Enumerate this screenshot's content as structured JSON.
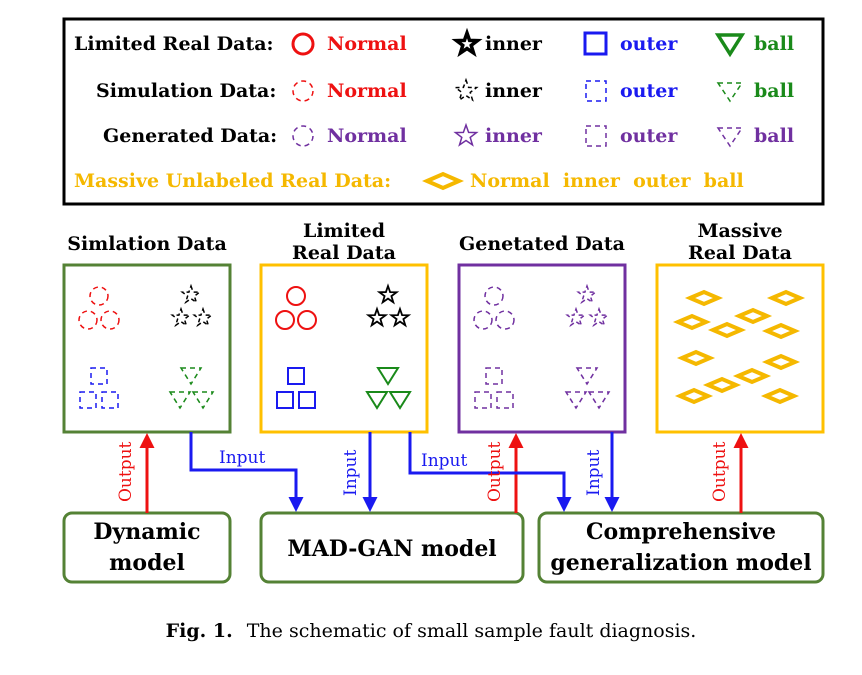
{
  "legend": {
    "rows": [
      {
        "label": "Limited Real Data:",
        "items": [
          "Normal",
          "inner",
          "outer",
          "ball"
        ]
      },
      {
        "label": "Simulation Data:",
        "items": [
          "Normal",
          "inner",
          "outer",
          "ball"
        ]
      },
      {
        "label": "Generated Data:",
        "items": [
          "Normal",
          "inner",
          "outer",
          "ball"
        ]
      }
    ],
    "massive": {
      "label": "Massive Unlabeled Real Data:",
      "items": "Normal  inner  outer  ball"
    }
  },
  "panels": {
    "simulation": {
      "title": [
        "Simlation Data"
      ]
    },
    "limited": {
      "title": [
        "Limited",
        "Real Data"
      ]
    },
    "generated": {
      "title": [
        "Genetated Data"
      ]
    },
    "massive": {
      "title": [
        "Massive",
        "Real Data"
      ]
    }
  },
  "models": {
    "dynamic": [
      "Dynamic",
      "model"
    ],
    "madgan": [
      "MAD-GAN model"
    ],
    "comprehensive": [
      "Comprehensive",
      "generalization model"
    ]
  },
  "flows": {
    "input": "Input",
    "output": "Output"
  },
  "caption": {
    "prefix": "Fig. 1.",
    "text": "The schematic of small sample fault diagnosis."
  },
  "colors": {
    "red": "#ee1111",
    "black": "#000000",
    "blue": "#1a1af0",
    "green": "#1a8a1a",
    "purple": "#7030a0",
    "gold": "#f5b800",
    "panelGreen": "#548235",
    "panelPurple": "#7030a0",
    "panelGold": "#ffc000"
  },
  "icons": [
    "circle-icon",
    "star-icon",
    "square-icon",
    "triangle-icon",
    "diamond-icon"
  ]
}
